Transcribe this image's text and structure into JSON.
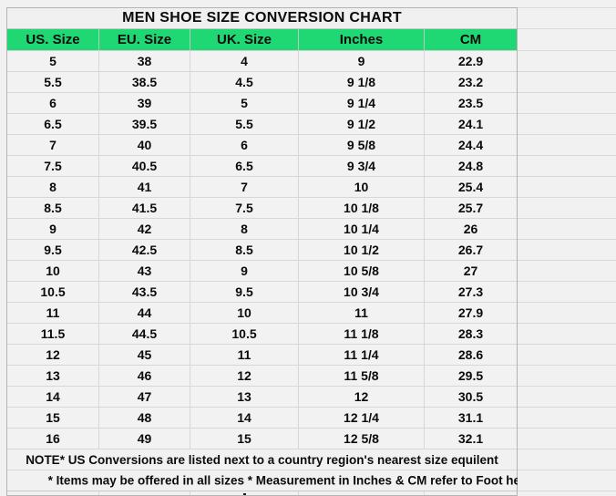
{
  "title": "MEN SHOE SIZE CONVERSION CHART",
  "chart_data": {
    "type": "table",
    "title": "MEN SHOE SIZE CONVERSION CHART",
    "columns": [
      "US. Size",
      "EU. Size",
      "UK. Size",
      "Inches",
      "CM"
    ],
    "rows": [
      [
        "5",
        "38",
        "4",
        "9",
        "22.9"
      ],
      [
        "5.5",
        "38.5",
        "4.5",
        "9 1/8",
        "23.2"
      ],
      [
        "6",
        "39",
        "5",
        "9 1/4",
        "23.5"
      ],
      [
        "6.5",
        "39.5",
        "5.5",
        "9 1/2",
        "24.1"
      ],
      [
        "7",
        "40",
        "6",
        "9 5/8",
        "24.4"
      ],
      [
        "7.5",
        "40.5",
        "6.5",
        "9 3/4",
        "24.8"
      ],
      [
        "8",
        "41",
        "7",
        "10",
        "25.4"
      ],
      [
        "8.5",
        "41.5",
        "7.5",
        "10 1/8",
        "25.7"
      ],
      [
        "9",
        "42",
        "8",
        "10 1/4",
        "26"
      ],
      [
        "9.5",
        "42.5",
        "8.5",
        "10 1/2",
        "26.7"
      ],
      [
        "10",
        "43",
        "9",
        "10 5/8",
        "27"
      ],
      [
        "10.5",
        "43.5",
        "9.5",
        "10 3/4",
        "27.3"
      ],
      [
        "11",
        "44",
        "10",
        "11",
        "27.9"
      ],
      [
        "11.5",
        "44.5",
        "10.5",
        "11 1/8",
        "28.3"
      ],
      [
        "12",
        "45",
        "11",
        "11 1/4",
        "28.6"
      ],
      [
        "13",
        "46",
        "12",
        "11 5/8",
        "29.5"
      ],
      [
        "14",
        "47",
        "13",
        "12",
        "30.5"
      ],
      [
        "15",
        "48",
        "14",
        "12 1/4",
        "31.1"
      ],
      [
        "16",
        "49",
        "15",
        "12 5/8",
        "32.1"
      ]
    ],
    "notes": [
      "NOTE* US Conversions are listed next to a country region's nearest size equilent",
      "* Items may be offered in all sizes * Measurement in Inches & CM refer to Foot heel-to-toe"
    ]
  },
  "colors": {
    "accent_green": "#1fd873",
    "cell_bg": "#f2f2f2",
    "grid_line": "#d7d7d7",
    "table_border": "#b3b3b3",
    "text": "#000000"
  }
}
